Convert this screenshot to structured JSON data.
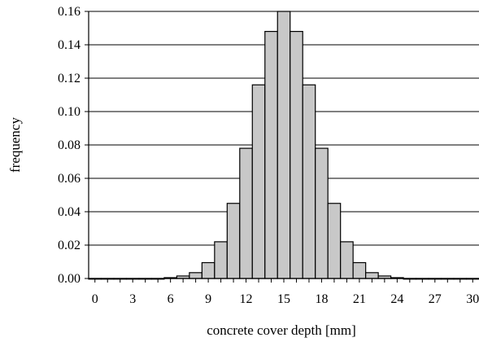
{
  "chart_data": {
    "type": "bar",
    "title": "",
    "xlabel": "concrete cover depth [mm]",
    "ylabel": "frequency",
    "xlim": [
      -0.5,
      30.5
    ],
    "ylim": [
      0,
      0.16
    ],
    "x_ticks": [
      "0",
      "3",
      "6",
      "9",
      "12",
      "15",
      "18",
      "21",
      "24",
      "27",
      "30"
    ],
    "y_ticks": [
      "0.00",
      "0.02",
      "0.04",
      "0.06",
      "0.08",
      "0.10",
      "0.12",
      "0.14",
      "0.16"
    ],
    "grid": "horizontal",
    "bar_color": "#c8c8c8",
    "bar_edge_color": "#000000",
    "categories": [
      0,
      1,
      2,
      3,
      4,
      5,
      6,
      7,
      8,
      9,
      10,
      11,
      12,
      13,
      14,
      15,
      16,
      17,
      18,
      19,
      20,
      21,
      22,
      23,
      24,
      25,
      26,
      27,
      28,
      29,
      30
    ],
    "values": [
      0.0,
      0.0,
      0.0,
      0.0,
      0.0,
      0.0,
      0.0005,
      0.0015,
      0.0035,
      0.0095,
      0.022,
      0.045,
      0.078,
      0.116,
      0.148,
      0.16,
      0.148,
      0.116,
      0.078,
      0.045,
      0.022,
      0.0095,
      0.0035,
      0.0015,
      0.0005,
      0.0,
      0.0,
      0.0,
      0.0,
      0.0,
      0.0
    ]
  }
}
